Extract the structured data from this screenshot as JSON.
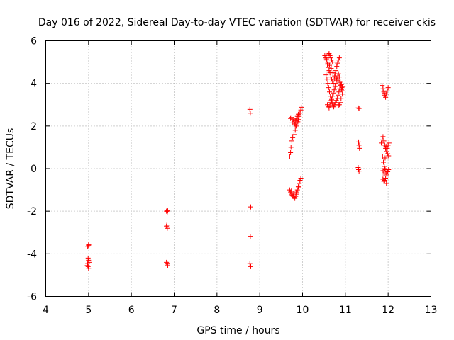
{
  "chart_data": {
    "type": "scatter",
    "title": "Day 016 of 2022, Sidereal Day-to-day VTEC variation (SDTVAR) for receiver ckis",
    "xlabel": "GPS time / hours",
    "ylabel": "SDTVAR / TECUs",
    "xlim": [
      4,
      13
    ],
    "ylim": [
      -6,
      6
    ],
    "xticks": [
      "4",
      "5",
      "6",
      "7",
      "8",
      "9",
      "10",
      "11",
      "12",
      "13"
    ],
    "yticks": [
      "-6",
      "-4",
      "-2",
      "0",
      "2",
      "4",
      "6"
    ],
    "grid": true,
    "marker": "+",
    "color": "#ff0000",
    "series": [
      {
        "name": "SDTVAR",
        "points": [
          [
            4.98,
            -3.65
          ],
          [
            5.0,
            -3.58
          ],
          [
            5.01,
            -3.55
          ],
          [
            4.99,
            -4.2
          ],
          [
            5.0,
            -4.3
          ],
          [
            4.98,
            -4.45
          ],
          [
            4.99,
            -4.6
          ],
          [
            5.0,
            -4.68
          ],
          [
            4.97,
            -4.55
          ],
          [
            5.01,
            -4.4
          ],
          [
            5.0,
            -3.62
          ],
          [
            6.82,
            -2.0
          ],
          [
            6.84,
            -2.03
          ],
          [
            6.85,
            -1.98
          ],
          [
            6.82,
            -2.7
          ],
          [
            6.84,
            -2.8
          ],
          [
            6.83,
            -2.65
          ],
          [
            6.82,
            -4.4
          ],
          [
            6.84,
            -4.48
          ],
          [
            6.85,
            -4.55
          ],
          [
            8.77,
            2.78
          ],
          [
            8.78,
            2.6
          ],
          [
            8.79,
            -1.8
          ],
          [
            8.78,
            -3.18
          ],
          [
            8.77,
            -4.45
          ],
          [
            8.79,
            -4.6
          ],
          [
            9.7,
            0.55
          ],
          [
            9.72,
            0.75
          ],
          [
            9.73,
            1.0
          ],
          [
            9.75,
            1.3
          ],
          [
            9.77,
            1.45
          ],
          [
            9.8,
            1.6
          ],
          [
            9.83,
            1.8
          ],
          [
            9.85,
            2.0
          ],
          [
            9.87,
            2.15
          ],
          [
            9.9,
            2.3
          ],
          [
            9.92,
            2.45
          ],
          [
            9.94,
            2.6
          ],
          [
            9.96,
            2.75
          ],
          [
            9.97,
            2.88
          ],
          [
            9.72,
            2.35
          ],
          [
            9.75,
            2.4
          ],
          [
            9.78,
            2.3
          ],
          [
            9.8,
            2.2
          ],
          [
            9.82,
            2.1
          ],
          [
            9.84,
            2.25
          ],
          [
            9.86,
            2.35
          ],
          [
            9.88,
            2.45
          ],
          [
            9.9,
            2.55
          ],
          [
            9.76,
            2.15
          ],
          [
            9.83,
            2.05
          ],
          [
            9.89,
            2.2
          ],
          [
            9.7,
            -1.0
          ],
          [
            9.72,
            -1.1
          ],
          [
            9.74,
            -1.2
          ],
          [
            9.76,
            -1.25
          ],
          [
            9.78,
            -1.3
          ],
          [
            9.8,
            -1.35
          ],
          [
            9.82,
            -1.4
          ],
          [
            9.84,
            -1.3
          ],
          [
            9.86,
            -1.2
          ],
          [
            9.88,
            -1.0
          ],
          [
            9.9,
            -0.85
          ],
          [
            9.92,
            -0.7
          ],
          [
            9.94,
            -0.55
          ],
          [
            9.96,
            -0.45
          ],
          [
            9.74,
            -1.05
          ],
          [
            9.79,
            -1.15
          ],
          [
            9.85,
            -1.1
          ],
          [
            9.91,
            -0.9
          ],
          [
            10.52,
            5.3
          ],
          [
            10.54,
            5.2
          ],
          [
            10.56,
            5.1
          ],
          [
            10.58,
            4.9
          ],
          [
            10.6,
            4.75
          ],
          [
            10.62,
            4.6
          ],
          [
            10.64,
            4.5
          ],
          [
            10.66,
            4.3
          ],
          [
            10.68,
            4.2
          ],
          [
            10.7,
            4.1
          ],
          [
            10.72,
            4.0
          ],
          [
            10.74,
            4.2
          ],
          [
            10.76,
            4.45
          ],
          [
            10.78,
            4.6
          ],
          [
            10.8,
            4.8
          ],
          [
            10.82,
            4.95
          ],
          [
            10.84,
            5.1
          ],
          [
            10.86,
            5.2
          ],
          [
            10.6,
            5.35
          ],
          [
            10.62,
            5.4
          ],
          [
            10.64,
            5.3
          ],
          [
            10.66,
            5.2
          ],
          [
            10.68,
            5.1
          ],
          [
            10.7,
            5.0
          ],
          [
            10.55,
            4.4
          ],
          [
            10.57,
            4.2
          ],
          [
            10.59,
            4.0
          ],
          [
            10.61,
            3.8
          ],
          [
            10.63,
            3.6
          ],
          [
            10.65,
            3.4
          ],
          [
            10.67,
            3.2
          ],
          [
            10.69,
            3.05
          ],
          [
            10.71,
            2.95
          ],
          [
            10.73,
            2.9
          ],
          [
            10.75,
            3.0
          ],
          [
            10.77,
            3.1
          ],
          [
            10.79,
            3.2
          ],
          [
            10.81,
            3.3
          ],
          [
            10.83,
            3.45
          ],
          [
            10.85,
            3.6
          ],
          [
            10.87,
            3.75
          ],
          [
            10.89,
            3.9
          ],
          [
            10.91,
            3.7
          ],
          [
            10.93,
            3.5
          ],
          [
            10.9,
            3.3
          ],
          [
            10.88,
            3.1
          ],
          [
            10.86,
            3.0
          ],
          [
            10.84,
            2.95
          ],
          [
            10.58,
            3.0
          ],
          [
            10.6,
            2.9
          ],
          [
            10.62,
            2.85
          ],
          [
            10.64,
            2.95
          ],
          [
            10.66,
            3.1
          ],
          [
            10.68,
            3.25
          ],
          [
            10.7,
            3.4
          ],
          [
            10.72,
            3.55
          ],
          [
            10.74,
            3.7
          ],
          [
            10.76,
            3.85
          ],
          [
            10.78,
            4.0
          ],
          [
            10.8,
            4.15
          ],
          [
            10.82,
            4.3
          ],
          [
            10.84,
            4.45
          ],
          [
            10.86,
            4.3
          ],
          [
            10.88,
            4.1
          ],
          [
            10.9,
            3.95
          ],
          [
            10.92,
            3.8
          ],
          [
            10.56,
            5.15
          ],
          [
            10.59,
            4.95
          ],
          [
            10.63,
            4.85
          ],
          [
            10.67,
            4.7
          ],
          [
            10.71,
            4.5
          ],
          [
            10.75,
            4.35
          ],
          [
            10.79,
            4.25
          ],
          [
            10.83,
            4.15
          ],
          [
            10.87,
            4.05
          ],
          [
            10.91,
            3.95
          ],
          [
            10.93,
            3.85
          ],
          [
            10.94,
            3.65
          ],
          [
            11.3,
            2.85
          ],
          [
            11.32,
            2.82
          ],
          [
            11.31,
            1.25
          ],
          [
            11.32,
            1.1
          ],
          [
            11.33,
            0.95
          ],
          [
            11.3,
            0.05
          ],
          [
            11.31,
            -0.05
          ],
          [
            11.32,
            -0.12
          ],
          [
            11.86,
            3.9
          ],
          [
            11.88,
            3.75
          ],
          [
            11.9,
            3.6
          ],
          [
            11.92,
            3.45
          ],
          [
            11.94,
            3.35
          ],
          [
            11.96,
            3.5
          ],
          [
            11.98,
            3.65
          ],
          [
            12.0,
            3.8
          ],
          [
            11.91,
            3.55
          ],
          [
            11.84,
            1.2
          ],
          [
            11.86,
            1.35
          ],
          [
            11.88,
            1.5
          ],
          [
            11.9,
            1.3
          ],
          [
            11.92,
            1.1
          ],
          [
            11.94,
            0.95
          ],
          [
            11.96,
            0.8
          ],
          [
            11.98,
            0.95
          ],
          [
            12.0,
            1.1
          ],
          [
            12.02,
            1.2
          ],
          [
            11.95,
            1.05
          ],
          [
            11.99,
            0.7
          ],
          [
            12.01,
            0.6
          ],
          [
            11.93,
            0.5
          ],
          [
            11.87,
            0.55
          ],
          [
            11.89,
            0.3
          ],
          [
            11.91,
            0.1
          ],
          [
            11.93,
            -0.05
          ],
          [
            11.95,
            -0.2
          ],
          [
            11.97,
            -0.3
          ],
          [
            11.99,
            -0.15
          ],
          [
            12.01,
            -0.05
          ],
          [
            11.88,
            -0.1
          ],
          [
            11.86,
            -0.35
          ],
          [
            11.88,
            -0.5
          ],
          [
            11.9,
            -0.6
          ],
          [
            11.92,
            -0.55
          ],
          [
            11.94,
            -0.45
          ],
          [
            11.96,
            -0.7
          ],
          [
            11.9,
            -0.25
          ],
          [
            11.92,
            0.0
          ]
        ]
      }
    ]
  }
}
